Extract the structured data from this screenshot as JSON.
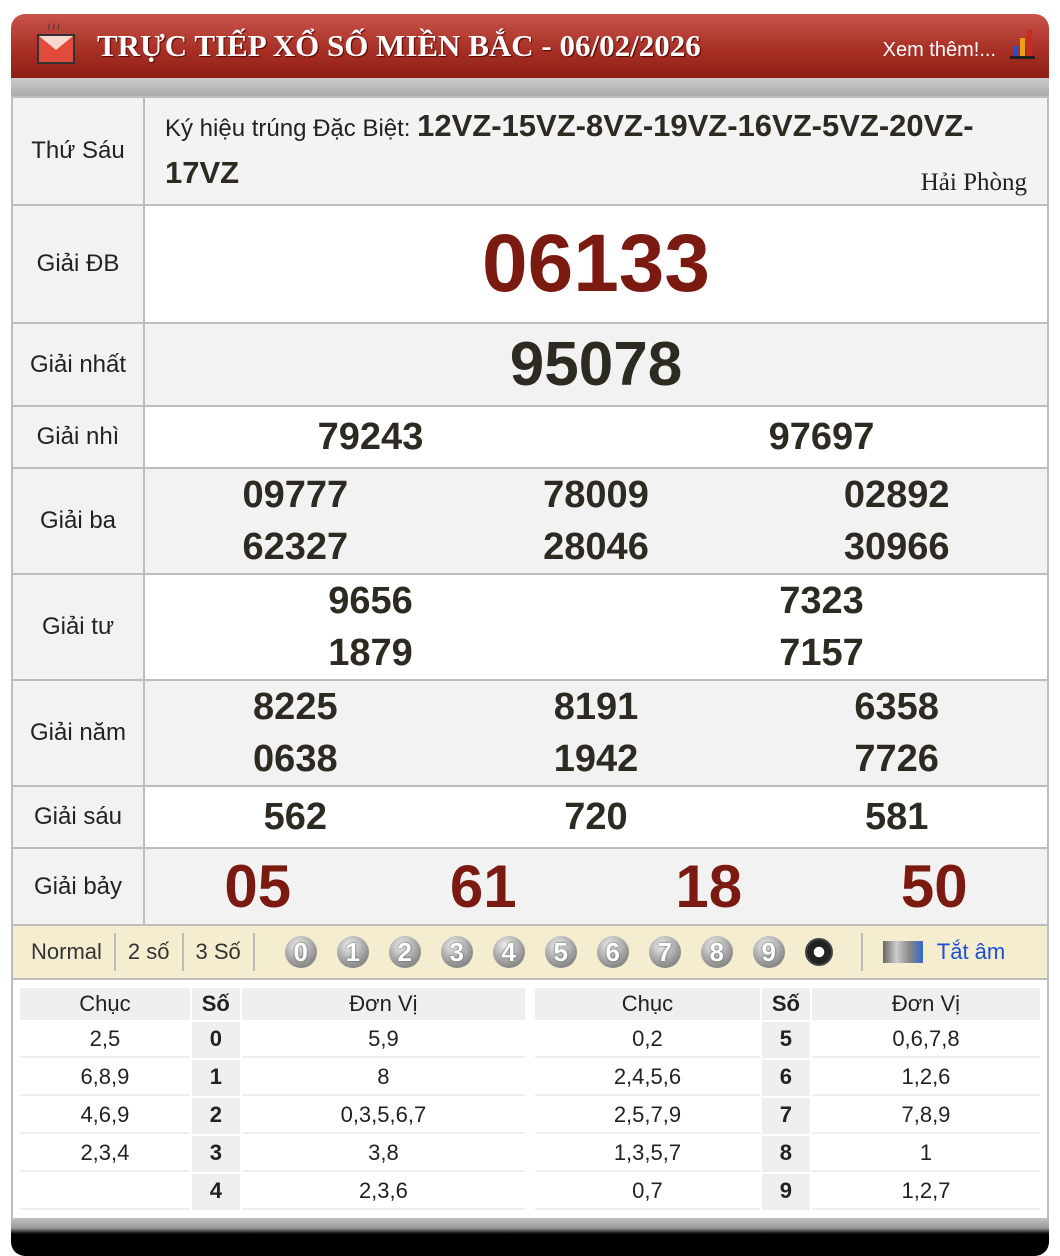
{
  "header": {
    "title": "TRỰC TIẾP XỔ SỐ MIỀN BẮC - 06/02/2026",
    "more_link": "Xem thêm!...",
    "chart_colors": [
      "#1f4fd6",
      "#e8a21a",
      "#d02a1a"
    ]
  },
  "info": {
    "day": "Thứ Sáu",
    "symbol_label": "Ký hiệu trúng Đặc Biệt:",
    "symbol_codes": "12VZ-15VZ-8VZ-19VZ-16VZ-5VZ-20VZ-17VZ",
    "province": "Hải Phòng"
  },
  "prizes": {
    "db": {
      "label": "Giải ĐB",
      "numbers": [
        "06133"
      ]
    },
    "nhat": {
      "label": "Giải nhất",
      "numbers": [
        "95078"
      ]
    },
    "nhi": {
      "label": "Giải nhì",
      "numbers": [
        "79243",
        "97697"
      ]
    },
    "ba": {
      "label": "Giải ba",
      "numbers": [
        "09777",
        "78009",
        "02892",
        "62327",
        "28046",
        "30966"
      ]
    },
    "tu": {
      "label": "Giải tư",
      "numbers": [
        "9656",
        "7323",
        "1879",
        "7157"
      ]
    },
    "nam": {
      "label": "Giải năm",
      "numbers": [
        "8225",
        "8191",
        "6358",
        "0638",
        "1942",
        "7726"
      ]
    },
    "sau": {
      "label": "Giải sáu",
      "numbers": [
        "562",
        "720",
        "581"
      ]
    },
    "bay": {
      "label": "Giải bảy",
      "numbers": [
        "05",
        "61",
        "18",
        "50"
      ]
    }
  },
  "colors": {
    "special": "#7a1a10",
    "header": "#a83026",
    "toolbar": "#f5edcf",
    "link": "#1a4fd6"
  },
  "toolbar": {
    "modes": [
      "Normal",
      "2 số",
      "3 Số"
    ],
    "digits": [
      "0",
      "1",
      "2",
      "3",
      "4",
      "5",
      "6",
      "7",
      "8",
      "9"
    ],
    "mute_label": "Tắt âm"
  },
  "loto": {
    "headers": [
      "Chục",
      "Số",
      "Đơn Vị"
    ],
    "left": [
      [
        "2,5",
        "0",
        "5,9"
      ],
      [
        "6,8,9",
        "1",
        "8"
      ],
      [
        "4,6,9",
        "2",
        "0,3,5,6,7"
      ],
      [
        "2,3,4",
        "3",
        "3,8"
      ],
      [
        "",
        "4",
        "2,3,6"
      ]
    ],
    "right": [
      [
        "0,2",
        "5",
        "0,6,7,8"
      ],
      [
        "2,4,5,6",
        "6",
        "1,2,6"
      ],
      [
        "2,5,7,9",
        "7",
        "7,8,9"
      ],
      [
        "1,3,5,7",
        "8",
        "1"
      ],
      [
        "0,7",
        "9",
        "1,2,7"
      ]
    ]
  }
}
